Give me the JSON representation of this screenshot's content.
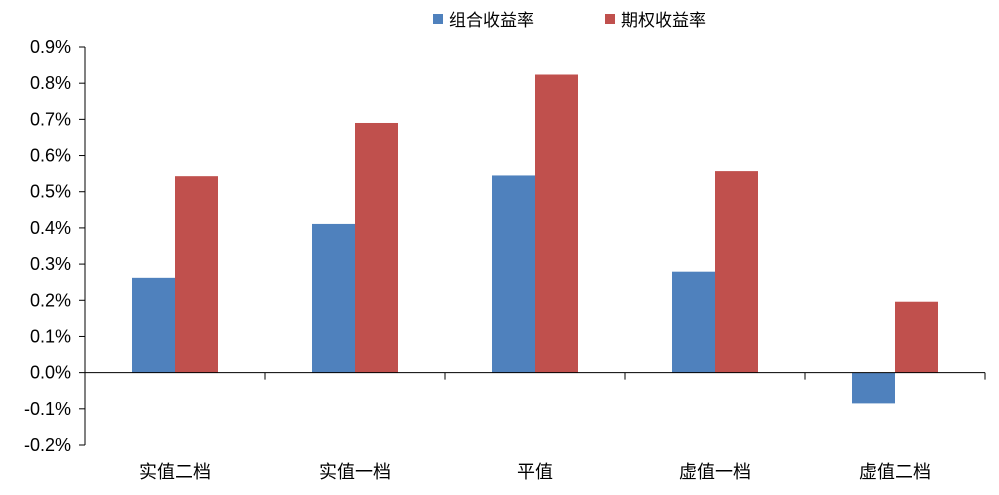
{
  "chart_data": {
    "type": "bar",
    "categories": [
      "实值二档",
      "实值一档",
      "平值",
      "虚值一档",
      "虚值二档"
    ],
    "series": [
      {
        "name": "组合收益率",
        "color": "#4F81BD",
        "values": [
          0.262,
          0.411,
          0.545,
          0.279,
          -0.085
        ]
      },
      {
        "name": "期权收益率",
        "color": "#C0504D",
        "values": [
          0.543,
          0.69,
          0.824,
          0.557,
          0.196
        ]
      }
    ],
    "yticks": [
      "0.9%",
      "0.8%",
      "0.7%",
      "0.6%",
      "0.5%",
      "0.4%",
      "0.3%",
      "0.2%",
      "0.1%",
      "0.0%",
      "-0.1%",
      "-0.2%"
    ],
    "ylim": [
      -0.2,
      0.9
    ],
    "unit": "%",
    "legend_position": "top-center",
    "grid": false
  }
}
